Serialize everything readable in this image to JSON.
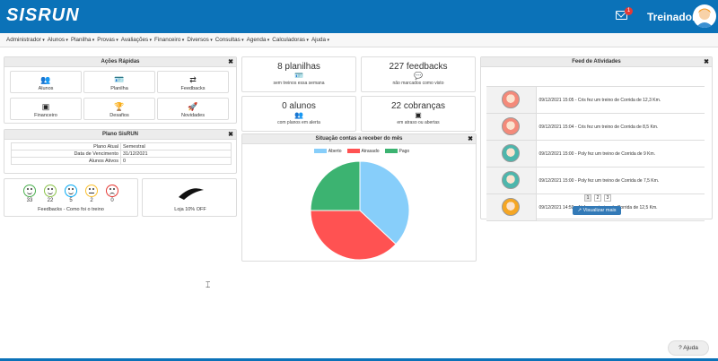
{
  "app": {
    "logo": "SISRUN",
    "notifications": "1",
    "user": "Treinador"
  },
  "menu": [
    "Administrador",
    "Alunos",
    "Planilha",
    "Provas",
    "Avaliações",
    "Financeiro",
    "Diversos",
    "Consultas",
    "Agenda",
    "Calculadoras",
    "Ajuda"
  ],
  "quick": {
    "title": "Ações Rápidas",
    "items": [
      {
        "label": "Alunos",
        "icon": "users-icon"
      },
      {
        "label": "Planilha",
        "icon": "id-card-icon"
      },
      {
        "label": "Feedbacks",
        "icon": "retweet-icon"
      },
      {
        "label": "Financeiro",
        "icon": "money-icon"
      },
      {
        "label": "Desafios",
        "icon": "trophy-icon"
      },
      {
        "label": "Novidades",
        "icon": "rocket-icon"
      }
    ]
  },
  "plan": {
    "title": "Plano SisRUN",
    "rows": [
      [
        "Plano Atual",
        "Semestral"
      ],
      [
        "Data de Vencimento",
        "31/12/2021"
      ],
      [
        "Alunos Ativos",
        "0"
      ]
    ]
  },
  "feedback": {
    "counts": [
      "33",
      "22",
      "5",
      "2",
      "0"
    ],
    "colors": [
      "#4caf50",
      "#8bc34a",
      "#03a9f4",
      "#fbc02d",
      "#e53935"
    ],
    "label": "Feedbacks - Como foi o treino"
  },
  "store": {
    "brand": "mizuno",
    "label": "Loja 10% OFF"
  },
  "stats": [
    {
      "num": "8 planilhas",
      "icon": "id-card-icon",
      "sub": "sem treinos essa semana"
    },
    {
      "num": "227 feedbacks",
      "icon": "comments-icon",
      "sub": "não marcados como visto"
    },
    {
      "num": "0 alunos",
      "icon": "users-icon",
      "sub": "com planos em alerta"
    },
    {
      "num": "22 cobranças",
      "icon": "money-icon",
      "sub": "em atraso ou abertas"
    }
  ],
  "chart_panel": {
    "title": "Situação contas a receber do mês"
  },
  "chart_data": {
    "type": "pie",
    "labels": [
      "Aberto",
      "Atrasado",
      "Pago"
    ],
    "values": [
      37,
      38,
      25
    ],
    "colors": [
      "#87cefa",
      "#ff5252",
      "#3cb371"
    ]
  },
  "feed": {
    "title": "Feed de Atividades",
    "items": [
      {
        "text": "09/12/2021 15:05 - Cris fez um treino de Corrida de 12,3 Km.",
        "avatar": "#f48a7a"
      },
      {
        "text": "09/12/2021 15:04 - Cris fez um treino de Corrida de 8,5 Km.",
        "avatar": "#f48a7a"
      },
      {
        "text": "09/12/2021 15:00 - Poly fez um treino de Corrida de 9 Km.",
        "avatar": "#4db6ac"
      },
      {
        "text": "09/12/2021 15:00 - Poly fez um treino de Corrida de 7,5 Km.",
        "avatar": "#4db6ac"
      },
      {
        "text": "09/12/2021 14:59 - Jú fez um treino de Corrida de 12,5 Km.",
        "avatar": "#f5a623"
      }
    ],
    "pages": [
      "1",
      "2",
      "3"
    ],
    "more": "Visualizar mais"
  },
  "help": "Ajuda"
}
